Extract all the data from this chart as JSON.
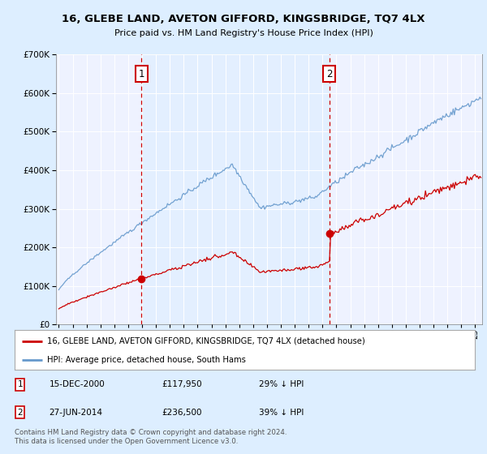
{
  "title": "16, GLEBE LAND, AVETON GIFFORD, KINGSBRIDGE, TQ7 4LX",
  "subtitle": "Price paid vs. HM Land Registry's House Price Index (HPI)",
  "legend_line1": "16, GLEBE LAND, AVETON GIFFORD, KINGSBRIDGE, TQ7 4LX (detached house)",
  "legend_line2": "HPI: Average price, detached house, South Hams",
  "annotation1_label": "1",
  "annotation1_date": "15-DEC-2000",
  "annotation1_price": "£117,950",
  "annotation1_hpi": "29% ↓ HPI",
  "annotation1_year": 2000.96,
  "annotation1_value": 117950,
  "annotation2_label": "2",
  "annotation2_date": "27-JUN-2014",
  "annotation2_price": "£236,500",
  "annotation2_hpi": "39% ↓ HPI",
  "annotation2_year": 2014.49,
  "annotation2_value": 236500,
  "sale_color": "#cc0000",
  "hpi_color": "#6699cc",
  "shade_color": "#ddeeff",
  "background_color": "#ddeeff",
  "plot_bg_color": "#eef2ff",
  "footer": "Contains HM Land Registry data © Crown copyright and database right 2024.\nThis data is licensed under the Open Government Licence v3.0.",
  "ylim": [
    0,
    700000
  ],
  "yticks": [
    0,
    100000,
    200000,
    300000,
    400000,
    500000,
    600000,
    700000
  ],
  "xlim_left": 1994.8,
  "xlim_right": 2025.5
}
